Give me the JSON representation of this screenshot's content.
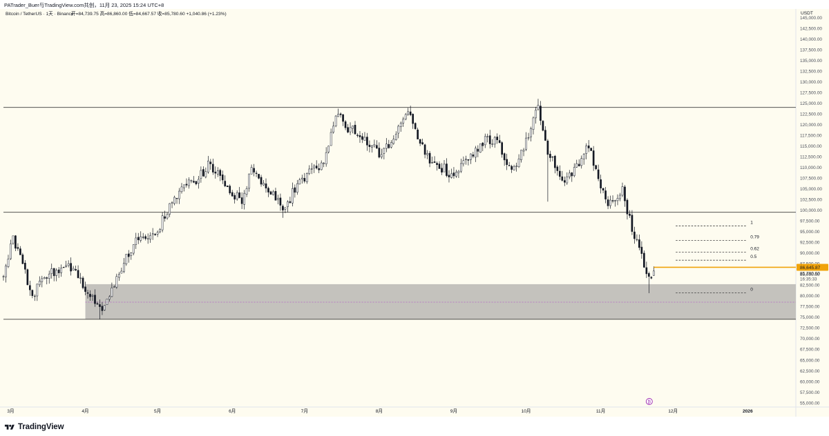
{
  "caption": "PATrader_Buer与TradingView.com共创，11月 23, 2025 15:24 UTC+8",
  "footer": {
    "logo_text": "TradingView",
    "logo_icon": "tradingview-logo-icon"
  },
  "colors": {
    "background": "#fefcf0",
    "candle": "#131722",
    "zone": "#c4c2bd",
    "price_line": "#f0a30a",
    "midline": "#b565c4",
    "event_icon": "#9c27b0"
  },
  "chart_data": {
    "type": "candlestick",
    "title": "Bitcoin / TetherUS · 1天 · Binance",
    "ohlc_summary": "开=84,739.75  高=86,860.00  低=84,667.57  收=85,780.60  +1,040.86 (+1.23%)",
    "currency": "USDT",
    "ylim": [
      54000,
      147000
    ],
    "y_ticks": [
      145000,
      142500,
      140000,
      137500,
      135000,
      132500,
      130000,
      127500,
      125000,
      122500,
      120000,
      117500,
      115000,
      112500,
      110000,
      107500,
      105000,
      102500,
      100000,
      97500,
      95000,
      92500,
      90000,
      87500,
      85000,
      82500,
      80000,
      77500,
      75000,
      72500,
      70000,
      67500,
      65000,
      62500,
      60000,
      57500,
      55000
    ],
    "y_tick_format": "comma2",
    "x_labels": [
      {
        "label": "3月",
        "date": "2025-03-01"
      },
      {
        "label": "4月",
        "date": "2025-04-01"
      },
      {
        "label": "5月",
        "date": "2025-05-01"
      },
      {
        "label": "6月",
        "date": "2025-06-01"
      },
      {
        "label": "7月",
        "date": "2025-07-01"
      },
      {
        "label": "8月",
        "date": "2025-08-01"
      },
      {
        "label": "9月",
        "date": "2025-09-01"
      },
      {
        "label": "10月",
        "date": "2025-10-01"
      },
      {
        "label": "11月",
        "date": "2025-11-01"
      },
      {
        "label": "12月",
        "date": "2025-12-01"
      },
      {
        "label": "2026",
        "date": "2026-01-01",
        "bold": true
      }
    ],
    "x_range": [
      "2025-02-26",
      "2026-01-21"
    ],
    "horizontal_lines": [
      124000,
      99500,
      74500
    ],
    "zone": {
      "y_low": 74500,
      "y_high": 82700,
      "start": "2025-04-01",
      "mid": 78500
    },
    "last_close": 85780.6,
    "price_labels": {
      "price": "86,645.87",
      "close": "85,780.60",
      "countdown": "16:35:33"
    },
    "fib_levels": [
      {
        "label": "1",
        "value": 96300
      },
      {
        "label": "0.79",
        "value": 92900
      },
      {
        "label": "0.62",
        "value": 90200
      },
      {
        "label": "0.5",
        "value": 88300
      },
      {
        "label": "0",
        "value": 80700
      }
    ],
    "fib_range": [
      "2025-12-01",
      "2026-01-01"
    ],
    "anchors": [
      {
        "date": "2025-02-26",
        "close": 84500
      },
      {
        "date": "2025-03-02",
        "close": 94000
      },
      {
        "date": "2025-03-10",
        "close": 80000
      },
      {
        "date": "2025-03-14",
        "close": 84000
      },
      {
        "date": "2025-03-25",
        "close": 87500
      },
      {
        "date": "2025-04-06",
        "close": 78000
      },
      {
        "date": "2025-04-08",
        "close": 76500
      },
      {
        "date": "2025-04-14",
        "close": 84500
      },
      {
        "date": "2025-04-22",
        "close": 93500
      },
      {
        "date": "2025-04-30",
        "close": 94200
      },
      {
        "date": "2025-05-08",
        "close": 103000
      },
      {
        "date": "2025-05-21",
        "close": 109000
      },
      {
        "date": "2025-05-22",
        "close": 111500
      },
      {
        "date": "2025-06-05",
        "close": 101500
      },
      {
        "date": "2025-06-09",
        "close": 110000
      },
      {
        "date": "2025-06-22",
        "close": 100000
      },
      {
        "date": "2025-06-30",
        "close": 107500
      },
      {
        "date": "2025-07-09",
        "close": 111000
      },
      {
        "date": "2025-07-14",
        "close": 122000
      },
      {
        "date": "2025-07-25",
        "close": 116500
      },
      {
        "date": "2025-08-02",
        "close": 113000
      },
      {
        "date": "2025-08-13",
        "close": 123000
      },
      {
        "date": "2025-08-20",
        "close": 113000
      },
      {
        "date": "2025-08-31",
        "close": 108500
      },
      {
        "date": "2025-09-01",
        "close": 108000
      },
      {
        "date": "2025-09-12",
        "close": 115500
      },
      {
        "date": "2025-09-18",
        "close": 117000
      },
      {
        "date": "2025-09-25",
        "close": 109500
      },
      {
        "date": "2025-09-30",
        "close": 114000
      },
      {
        "date": "2025-10-06",
        "close": 124500
      },
      {
        "date": "2025-10-10",
        "close": 113000
      },
      {
        "date": "2025-10-17",
        "close": 106500
      },
      {
        "date": "2025-10-21",
        "close": 110000
      },
      {
        "date": "2025-10-27",
        "close": 114500
      },
      {
        "date": "2025-11-04",
        "close": 101000
      },
      {
        "date": "2025-11-10",
        "close": 105500
      },
      {
        "date": "2025-11-14",
        "close": 95000
      },
      {
        "date": "2025-11-21",
        "close": 84500
      },
      {
        "date": "2025-11-23",
        "close": 85780
      }
    ]
  }
}
